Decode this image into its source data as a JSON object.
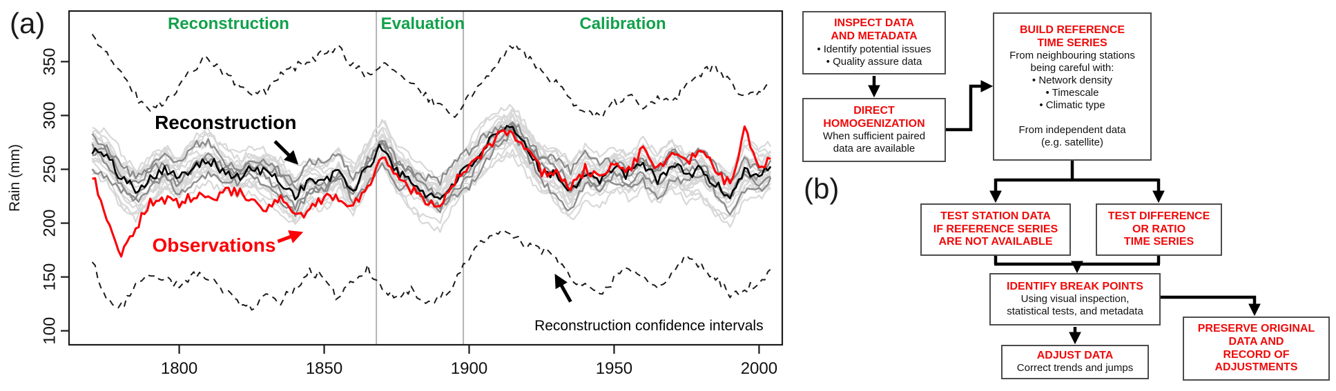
{
  "figure": {
    "panel_a_label": "(a)",
    "panel_b_label": "(b)"
  },
  "chart_data": {
    "type": "line",
    "title": "",
    "xlabel": "",
    "ylabel": "Rain (mm)",
    "xlim": [
      1762,
      2008
    ],
    "ylim": [
      87,
      397
    ],
    "xticks": [
      1800,
      1850,
      1900,
      1950,
      2000
    ],
    "yticks": [
      100,
      150,
      200,
      250,
      300,
      350
    ],
    "grid": false,
    "legend_position": "none",
    "period_labels": [
      {
        "label": "Reconstruction",
        "color": "#12a14b",
        "x_center_year": 1817
      },
      {
        "label": "Evaluation",
        "color": "#12a14b",
        "x_center_year": 1884
      },
      {
        "label": "Calibration",
        "color": "#12a14b",
        "x_center_year": 1953
      }
    ],
    "period_boundaries_year": [
      1868,
      1898
    ],
    "boundary_line_color": "#b3b3b3",
    "series": [
      {
        "name": "Reconstruction",
        "color": "#000000",
        "style": "solid",
        "width": 2.6,
        "jitter_mm": 5,
        "x_start": 1770,
        "x_step": 5,
        "values": [
          268,
          262,
          242,
          232,
          242,
          252,
          240,
          255,
          260,
          248,
          242,
          250,
          248,
          238,
          226,
          240,
          238,
          248,
          230,
          252,
          272,
          248,
          238,
          228,
          222,
          240,
          252,
          270,
          282,
          288,
          268,
          250,
          245,
          230,
          248,
          240,
          250,
          245,
          255,
          240,
          255,
          245,
          250,
          235,
          225,
          250,
          245,
          252
        ]
      },
      {
        "name": "Observations",
        "color": "#fb0007",
        "style": "solid",
        "width": 3.1,
        "jitter_mm": 5,
        "x_start": 1770,
        "x_step": 5,
        "values": [
          245,
          205,
          172,
          195,
          220,
          222,
          218,
          225,
          222,
          228,
          230,
          218,
          212,
          222,
          205,
          212,
          222,
          225,
          215,
          235,
          262,
          245,
          232,
          222,
          218,
          238,
          250,
          268,
          280,
          285,
          265,
          248,
          248,
          232,
          250,
          242,
          255,
          250,
          268,
          252,
          262,
          255,
          268,
          250,
          235,
          285,
          255,
          258
        ]
      },
      {
        "name": "Upper reconstruction confidence interval",
        "color": "#1a1a1a",
        "style": "dashed",
        "width": 2,
        "jitter_mm": 4,
        "x_start": 1770,
        "x_step": 5,
        "values": [
          372,
          358,
          340,
          318,
          305,
          312,
          328,
          342,
          355,
          338,
          330,
          318,
          322,
          338,
          345,
          352,
          358,
          362,
          345,
          338,
          348,
          342,
          330,
          318,
          308,
          298,
          318,
          330,
          352,
          365,
          355,
          340,
          330,
          312,
          302,
          298,
          312,
          318,
          308,
          315,
          310,
          330,
          340,
          345,
          330,
          318,
          322,
          335
        ]
      },
      {
        "name": "Lower reconstruction confidence interval",
        "color": "#1a1a1a",
        "style": "dashed",
        "width": 2,
        "jitter_mm": 4,
        "x_start": 1770,
        "x_step": 5,
        "values": [
          165,
          128,
          122,
          142,
          152,
          148,
          142,
          152,
          148,
          138,
          128,
          120,
          132,
          128,
          140,
          155,
          150,
          128,
          148,
          158,
          140,
          132,
          138,
          122,
          130,
          145,
          168,
          185,
          192,
          188,
          178,
          175,
          168,
          150,
          140,
          132,
          148,
          158,
          148,
          140,
          152,
          168,
          160,
          150,
          132,
          138,
          145,
          158
        ]
      }
    ],
    "ensemble": {
      "description": "reconstruction ensemble members",
      "light_count": 18,
      "light_color": "#d8d8d8",
      "medium_count": 4,
      "medium_color": "#8b8b8b",
      "spread_mm": 22,
      "seed": 11
    },
    "annotations": [
      {
        "text": "Reconstruction",
        "color": "#000000",
        "center": {
          "year": 1816,
          "mm": 293
        },
        "arrow": {
          "from": {
            "year": 1833,
            "mm": 276
          },
          "to": {
            "year": 1839,
            "mm": 260
          }
        }
      },
      {
        "text": "Observations",
        "color": "#fb0007",
        "center": {
          "year": 1812,
          "mm": 179
        },
        "arrow": {
          "from": {
            "year": 1834,
            "mm": 183
          },
          "to": {
            "year": 1840,
            "mm": 189
          }
        }
      },
      {
        "text": "Reconstruction confidence intervals",
        "color": "#000000",
        "center": {
          "year": 1962,
          "mm": 104
        },
        "arrow": {
          "from": {
            "year": 1935,
            "mm": 127
          },
          "to": {
            "year": 1931,
            "mm": 146
          }
        }
      }
    ]
  },
  "flowchart": {
    "accent_color": "#ee0b0b",
    "boxes": [
      {
        "id": "inspect",
        "title": "INSPECT DATA\nAND METADATA",
        "body": "• Identify potential issues\n• Quality assure data"
      },
      {
        "id": "direct",
        "title": "DIRECT\nHOMOGENIZATION",
        "body": "When sufficient paired\ndata are available"
      },
      {
        "id": "build",
        "title": "BUILD REFERENCE\nTIME SERIES",
        "body": "From neighbouring stations\nbeing careful with:\n• Network density\n• Timescale\n• Climatic type\n\nFrom independent data\n(e.g. satellite)"
      },
      {
        "id": "teststation",
        "title": "TEST STATION DATA\nIF REFERENCE SERIES\nARE NOT AVAILABLE",
        "body": ""
      },
      {
        "id": "testdiff",
        "title": "TEST DIFFERENCE\nOR RATIO\nTIME SERIES",
        "body": ""
      },
      {
        "id": "identify",
        "title": "IDENTIFY BREAK POINTS",
        "body": "Using visual inspection,\nstatistical tests, and metadata"
      },
      {
        "id": "adjust",
        "title": "ADJUST DATA",
        "body": "Correct trends and jumps"
      },
      {
        "id": "preserve",
        "title": "PRESERVE ORIGINAL\nDATA AND\nRECORD OF\nADJUSTMENTS",
        "body": ""
      }
    ]
  }
}
